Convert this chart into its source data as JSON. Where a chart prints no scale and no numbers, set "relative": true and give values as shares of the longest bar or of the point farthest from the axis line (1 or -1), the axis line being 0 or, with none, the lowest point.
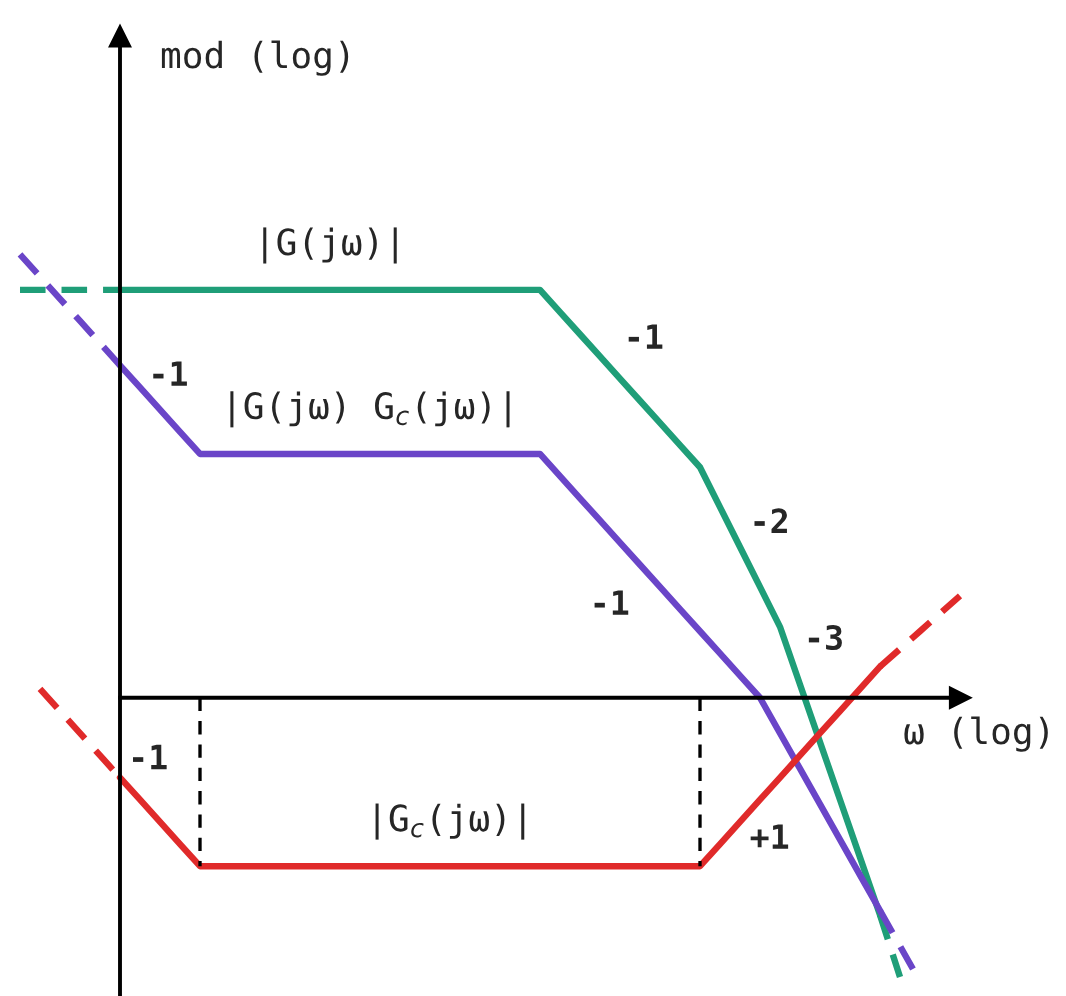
{
  "chart_data": {
    "type": "line",
    "relative": true,
    "xlabel": "ω (log)",
    "ylabel": "mod (log)",
    "categories": [
      null,
      null,
      null,
      null,
      null,
      null,
      null,
      null,
      null,
      null,
      null,
      null,
      null,
      null,
      null,
      null,
      null,
      null,
      null,
      null,
      null,
      null,
      null,
      null,
      null,
      null,
      null,
      null,
      null,
      null,
      null,
      null,
      null,
      null,
      null,
      null,
      null,
      null,
      null,
      null,
      null,
      null,
      null,
      null,
      null,
      null,
      null,
      null
    ],
    "series": [
      {
        "name": "|G(jω)|",
        "color": "#1f9e78",
        "values": [
          null,
          null,
          null,
          null,
          null,
          0.92,
          0.92,
          0.92,
          0.92,
          0.92,
          0.92,
          0.92,
          0.92,
          0.92,
          0.92,
          0.92,
          0.92,
          0.92,
          0.92,
          0.92,
          0.92,
          0.92,
          0.92,
          0.92,
          0.92,
          0.92,
          0.92,
          0.87,
          0.82,
          0.77,
          0.72,
          0.67,
          0.62,
          0.57,
          0.52,
          0.43,
          0.34,
          0.25,
          0.16,
          0.03,
          -0.1,
          -0.23,
          -0.36,
          -0.49,
          null,
          null,
          null,
          null
        ]
      },
      {
        "color": "#1f9e78",
        "line_style": "dashed",
        "values": [
          0.92,
          0.92,
          0.92,
          0.92,
          0.92,
          0.92,
          null,
          null,
          null,
          null,
          null,
          null,
          null,
          null,
          null,
          null,
          null,
          null,
          null,
          null,
          null,
          null,
          null,
          null,
          null,
          null,
          null,
          null,
          null,
          null,
          null,
          null,
          null,
          null,
          null,
          null,
          null,
          null,
          null,
          null,
          null,
          null,
          null,
          null,
          null,
          null,
          null,
          null
        ]
      },
      {
        "color": "#1f9e78",
        "line_style": "dashed",
        "values": [
          null,
          null,
          null,
          null,
          null,
          null,
          null,
          null,
          null,
          null,
          null,
          null,
          null,
          null,
          null,
          null,
          null,
          null,
          null,
          null,
          null,
          null,
          null,
          null,
          null,
          null,
          null,
          null,
          null,
          null,
          null,
          null,
          null,
          null,
          null,
          null,
          null,
          null,
          null,
          null,
          null,
          null,
          null,
          -0.49,
          -0.63,
          null,
          null,
          null
        ]
      },
      {
        "name": "|G(jω) G$_{c}$(jω)|",
        "color": "#6a45c8",
        "values": [
          null,
          null,
          null,
          null,
          null,
          0.75,
          0.7,
          0.65,
          0.6,
          0.55,
          0.55,
          0.55,
          0.55,
          0.55,
          0.55,
          0.55,
          0.55,
          0.55,
          0.55,
          0.55,
          0.55,
          0.55,
          0.55,
          0.55,
          0.55,
          0.55,
          0.55,
          0.5,
          0.45,
          0.4,
          0.35,
          0.3,
          0.25,
          0.2,
          0.15,
          0.1,
          0.05,
          0,
          -0.08,
          -0.16,
          -0.24,
          -0.32,
          -0.4,
          -0.48,
          null,
          null,
          null,
          null
        ]
      },
      {
        "color": "#6a45c8",
        "line_style": "dashed",
        "values": [
          1,
          0.95,
          0.9,
          0.85,
          0.8,
          0.75,
          null,
          null,
          null,
          null,
          null,
          null,
          null,
          null,
          null,
          null,
          null,
          null,
          null,
          null,
          null,
          null,
          null,
          null,
          null,
          null,
          null,
          null,
          null,
          null,
          null,
          null,
          null,
          null,
          null,
          null,
          null,
          null,
          null,
          null,
          null,
          null,
          null,
          null,
          null,
          null,
          null,
          null
        ]
      },
      {
        "color": "#6a45c8",
        "line_style": "dashed",
        "values": [
          null,
          null,
          null,
          null,
          null,
          null,
          null,
          null,
          null,
          null,
          null,
          null,
          null,
          null,
          null,
          null,
          null,
          null,
          null,
          null,
          null,
          null,
          null,
          null,
          null,
          null,
          null,
          null,
          null,
          null,
          null,
          null,
          null,
          null,
          null,
          null,
          null,
          null,
          null,
          null,
          null,
          null,
          null,
          -0.48,
          -0.56,
          -0.64,
          null,
          null
        ]
      },
      {
        "name": "|G$_{c}$(jω)|",
        "color": "#e02a2a",
        "values": [
          null,
          null,
          null,
          null,
          null,
          -0.18,
          -0.23,
          -0.28,
          -0.33,
          -0.38,
          -0.38,
          -0.38,
          -0.38,
          -0.38,
          -0.38,
          -0.38,
          -0.38,
          -0.38,
          -0.38,
          -0.38,
          -0.38,
          -0.38,
          -0.38,
          -0.38,
          -0.38,
          -0.38,
          -0.38,
          -0.38,
          -0.38,
          -0.38,
          -0.38,
          -0.38,
          -0.38,
          -0.38,
          -0.38,
          -0.33,
          -0.28,
          -0.23,
          -0.18,
          -0.13,
          -0.08,
          -0.03,
          0.02,
          0.07,
          null,
          null,
          null,
          null
        ]
      },
      {
        "color": "#e02a2a",
        "line_style": "dashed",
        "values": [
          null,
          0.02,
          -0.03,
          -0.08,
          -0.13,
          -0.18,
          null,
          null,
          null,
          null,
          null,
          null,
          null,
          null,
          null,
          null,
          null,
          null,
          null,
          null,
          null,
          null,
          null,
          null,
          null,
          null,
          null,
          null,
          null,
          null,
          null,
          null,
          null,
          null,
          null,
          null,
          null,
          null,
          null,
          null,
          null,
          null,
          null,
          null,
          null,
          null,
          null,
          null
        ]
      },
      {
        "color": "#e02a2a",
        "line_style": "dashed",
        "values": [
          null,
          null,
          null,
          null,
          null,
          null,
          null,
          null,
          null,
          null,
          null,
          null,
          null,
          null,
          null,
          null,
          null,
          null,
          null,
          null,
          null,
          null,
          null,
          null,
          null,
          null,
          null,
          null,
          null,
          null,
          null,
          null,
          null,
          null,
          null,
          null,
          null,
          null,
          null,
          null,
          null,
          null,
          null,
          0.07,
          0.11,
          0.15,
          0.19,
          0.23
        ]
      }
    ],
    "annotations": [
      "-1",
      "-1",
      "-2",
      "-1",
      "-3",
      "+1",
      "-1"
    ]
  }
}
